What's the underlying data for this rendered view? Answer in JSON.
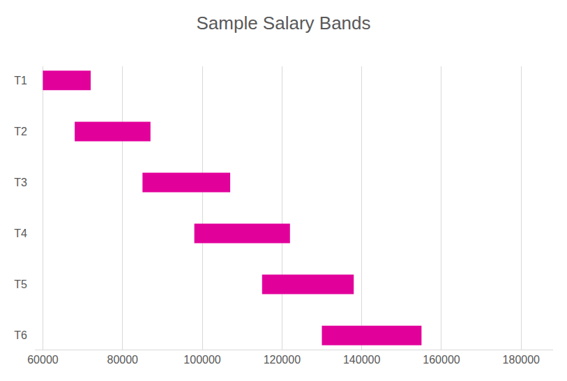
{
  "chart_data": {
    "type": "bar",
    "title": "Sample Salary Bands",
    "orientation": "horizontal",
    "categories": [
      "T1",
      "T2",
      "T3",
      "T4",
      "T5",
      "T6"
    ],
    "values": [
      [
        60000,
        72000
      ],
      [
        68000,
        87000
      ],
      [
        85000,
        107000
      ],
      [
        98000,
        122000
      ],
      [
        115000,
        138000
      ],
      [
        130000,
        155000
      ]
    ],
    "color": "#e2009b",
    "xlim": [
      58000,
      188000
    ],
    "xticks": [
      60000,
      80000,
      100000,
      120000,
      140000,
      160000,
      180000
    ],
    "grid": true
  }
}
